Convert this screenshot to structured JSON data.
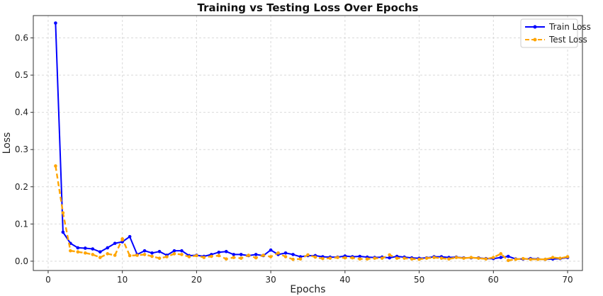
{
  "chart_data": {
    "type": "line",
    "title": "Training vs Testing Loss Over Epochs",
    "xlabel": "Epochs",
    "ylabel": "Loss",
    "xlim": [
      -2,
      72
    ],
    "ylim": [
      -0.025,
      0.66
    ],
    "xticks": [
      0,
      10,
      20,
      30,
      40,
      50,
      60,
      70
    ],
    "yticks": [
      0.0,
      0.1,
      0.2,
      0.3,
      0.4,
      0.5,
      0.6
    ],
    "ytick_labels": [
      "0.0",
      "0.1",
      "0.2",
      "0.3",
      "0.4",
      "0.5",
      "0.6"
    ],
    "grid": true,
    "legend_position": "top-right",
    "x": [
      1,
      2,
      3,
      4,
      5,
      6,
      7,
      8,
      9,
      10,
      11,
      12,
      13,
      14,
      15,
      16,
      17,
      18,
      19,
      20,
      21,
      22,
      23,
      24,
      25,
      26,
      27,
      28,
      29,
      30,
      31,
      32,
      33,
      34,
      35,
      36,
      37,
      38,
      39,
      40,
      41,
      42,
      43,
      44,
      45,
      46,
      47,
      48,
      49,
      50,
      51,
      52,
      53,
      54,
      55,
      56,
      57,
      58,
      59,
      60,
      61,
      62,
      63,
      64,
      65,
      66,
      67,
      68,
      69,
      70
    ],
    "series": [
      {
        "name": "Train Loss",
        "color": "#0000ff",
        "style": "solid",
        "values": [
          0.64,
          0.078,
          0.048,
          0.036,
          0.035,
          0.033,
          0.025,
          0.036,
          0.048,
          0.052,
          0.066,
          0.018,
          0.028,
          0.022,
          0.026,
          0.016,
          0.028,
          0.028,
          0.015,
          0.016,
          0.013,
          0.018,
          0.024,
          0.026,
          0.018,
          0.018,
          0.015,
          0.018,
          0.015,
          0.03,
          0.018,
          0.022,
          0.018,
          0.012,
          0.015,
          0.015,
          0.012,
          0.011,
          0.011,
          0.014,
          0.012,
          0.013,
          0.011,
          0.01,
          0.011,
          0.009,
          0.013,
          0.011,
          0.009,
          0.008,
          0.009,
          0.012,
          0.012,
          0.01,
          0.011,
          0.009,
          0.009,
          0.009,
          0.007,
          0.007,
          0.01,
          0.013,
          0.006,
          0.006,
          0.007,
          0.006,
          0.005,
          0.006,
          0.007,
          0.01
        ]
      },
      {
        "name": "Test Loss",
        "color": "#ffa500",
        "style": "dashed",
        "values": [
          0.256,
          0.13,
          0.028,
          0.025,
          0.022,
          0.018,
          0.01,
          0.02,
          0.016,
          0.06,
          0.015,
          0.016,
          0.018,
          0.013,
          0.008,
          0.012,
          0.02,
          0.018,
          0.012,
          0.015,
          0.01,
          0.013,
          0.015,
          0.006,
          0.01,
          0.008,
          0.016,
          0.009,
          0.016,
          0.012,
          0.022,
          0.012,
          0.005,
          0.006,
          0.017,
          0.011,
          0.007,
          0.008,
          0.01,
          0.009,
          0.009,
          0.006,
          0.006,
          0.008,
          0.008,
          0.017,
          0.008,
          0.008,
          0.006,
          0.005,
          0.008,
          0.01,
          0.008,
          0.006,
          0.01,
          0.008,
          0.01,
          0.008,
          0.006,
          0.01,
          0.02,
          0.002,
          0.005,
          0.007,
          0.005,
          0.005,
          0.005,
          0.01,
          0.008,
          0.012
        ]
      }
    ]
  }
}
